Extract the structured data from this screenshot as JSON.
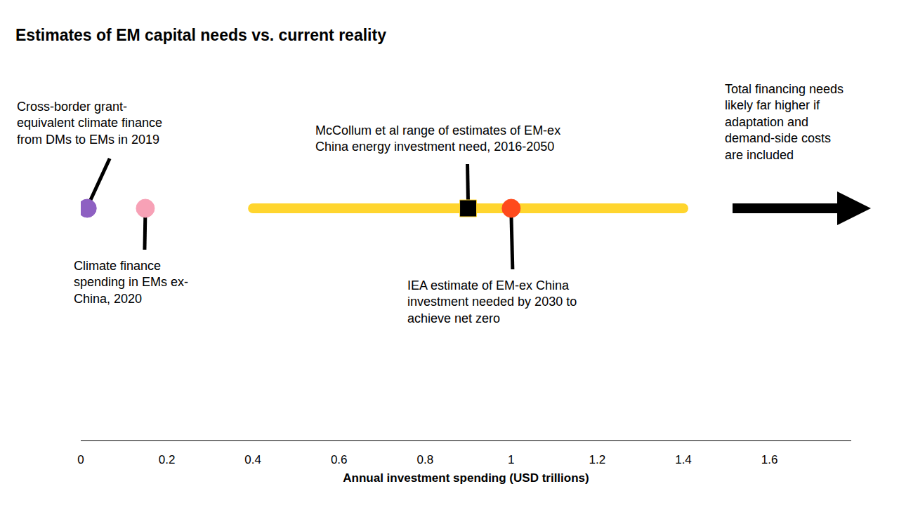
{
  "chart_data": {
    "type": "scatter",
    "title": "Estimates of EM capital needs vs. current reality",
    "x_label": "Annual investment spending (USD trillions)",
    "xlim": [
      0,
      1.79
    ],
    "xticks": [
      0,
      0.2,
      0.4,
      0.6,
      0.8,
      1,
      1.2,
      1.4,
      1.6
    ],
    "tick_labels": "x",
    "grid": false,
    "range": {
      "low": 0.4,
      "high": 1.4,
      "color": "#ffd52e"
    },
    "points": [
      {
        "value": 0.015,
        "color": "#8e60c2",
        "marker": "circle",
        "label_lines": [
          "Cross-border grant-",
          "equivalent climate finance",
          "from DMs to EMs in 2019"
        ]
      },
      {
        "value": 0.15,
        "color": "#f7a1b6",
        "marker": "circle",
        "label_lines": [
          "Climate finance",
          "spending in EMs ex-",
          "China, 2020"
        ]
      },
      {
        "value": 0.9,
        "color": "#000000",
        "marker": "square",
        "label_lines": [
          "McCollum et al range of estimates of EM-ex",
          "China energy investment need, 2016-2050"
        ]
      },
      {
        "value": 1,
        "color": "#ff4a1c",
        "marker": "circle",
        "label_lines": [
          "IEA estimate of EM-ex China",
          "investment needed by 2030 to",
          "achieve net zero"
        ]
      }
    ],
    "note_lines": [
      "Total financing needs",
      "likely far higher if",
      "adaptation and",
      "demand-side costs",
      "are included"
    ]
  }
}
